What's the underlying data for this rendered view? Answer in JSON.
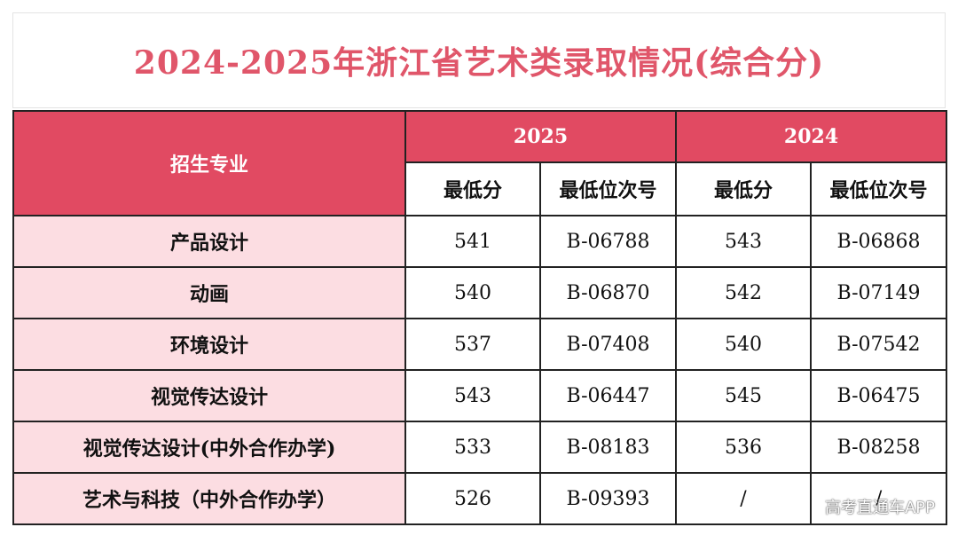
{
  "title": "2024-2025年浙江省艺术类录取情况(综合分)",
  "table": {
    "major_header": "招生专业",
    "years": [
      "2025",
      "2024"
    ],
    "sub_headers": [
      "最低分",
      "最低位次号",
      "最低分",
      "最低位次号"
    ],
    "rows": [
      {
        "major": "产品设计",
        "min_2025": "541",
        "rank_2025": "B-06788",
        "min_2024": "543",
        "rank_2024": "B-06868"
      },
      {
        "major": "动画",
        "min_2025": "540",
        "rank_2025": "B-06870",
        "min_2024": "542",
        "rank_2024": "B-07149"
      },
      {
        "major": "环境设计",
        "min_2025": "537",
        "rank_2025": "B-07408",
        "min_2024": "540",
        "rank_2024": "B-07542"
      },
      {
        "major": "视觉传达设计",
        "min_2025": "543",
        "rank_2025": "B-06447",
        "min_2024": "545",
        "rank_2024": "B-06475"
      },
      {
        "major": "视觉传达设计(中外合作办学)",
        "min_2025": "533",
        "rank_2025": "B-08183",
        "min_2024": "536",
        "rank_2024": "B-08258"
      },
      {
        "major": "艺术与科技（中外合作办学）",
        "min_2025": "526",
        "rank_2025": "B-09393",
        "min_2024": "/",
        "rank_2024": "/"
      }
    ]
  },
  "watermark": "高考直通车APP",
  "colors": {
    "title": "#e0566a",
    "header_bg": "#e14a62",
    "major_bg": "#fcdde2"
  }
}
